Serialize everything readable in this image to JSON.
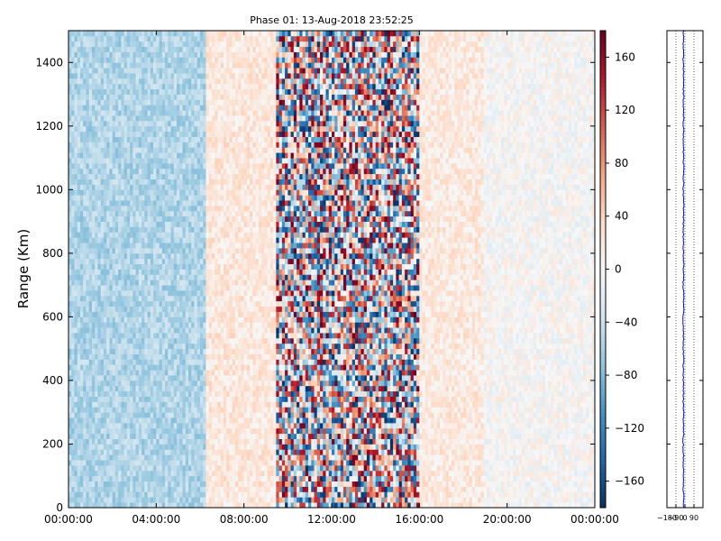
{
  "chart_data": [
    {
      "type": "heatmap",
      "title": "Phase 01: 13-Aug-2018 23:52:25",
      "ylabel": "Range (Km)",
      "xlabel": "",
      "xlim": [
        "00:00:00",
        "24:00:00"
      ],
      "ylim": [
        0,
        1500
      ],
      "x_tick_labels": [
        "00:00:00",
        "04:00:00",
        "08:00:00",
        "12:00:00",
        "16:00:00",
        "20:00:00",
        "00:00:00"
      ],
      "y_ticks": [
        0,
        200,
        400,
        600,
        800,
        1000,
        1200,
        1400
      ],
      "grid": false,
      "colormap": "RdBu_r",
      "colorbar": {
        "range": [
          -180,
          180
        ],
        "ticks": [
          160,
          120,
          80,
          40,
          0,
          -40,
          -80,
          -120,
          -160
        ]
      },
      "value_profile_by_hour": [
        {
          "hour_range": [
            0,
            6.3
          ],
          "approx_value": -55,
          "note_lv": "blue band"
        },
        {
          "hour_range": [
            6.3,
            9.5
          ],
          "approx_value": 20
        },
        {
          "hour_range": [
            9.5,
            16
          ],
          "approx_value": 0,
          "spread": 180
        },
        {
          "hour_range": [
            16,
            19
          ],
          "approx_value": 18
        },
        {
          "hour_range": [
            19,
            24
          ],
          "approx_value": 0
        }
      ]
    },
    {
      "type": "line",
      "x_tick_labels": [
        "−180",
        "−90",
        "0",
        "90"
      ],
      "xlim": [
        -180,
        180
      ],
      "ylim": [
        0,
        1500
      ],
      "y_ticks": [
        0,
        200,
        400,
        600,
        800,
        1000,
        1200,
        1400
      ],
      "grid": "x-dotted",
      "line_color": "#0000ff",
      "approx_value": -15
    }
  ]
}
